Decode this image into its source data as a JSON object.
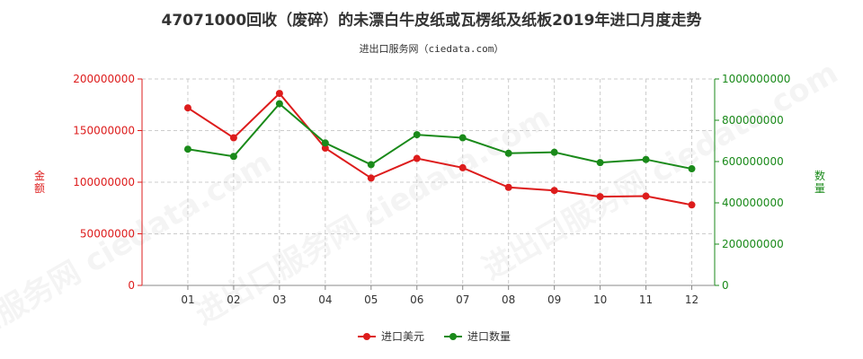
{
  "chart_data": {
    "type": "line",
    "title": "47071000回收（废碎）的未漂白牛皮纸或瓦楞纸及纸板2019年进口月度走势",
    "subtitle": "进出口服务网（ciedata.com）",
    "watermark": "进出口服务网 ciedata.com",
    "categories": [
      "01",
      "02",
      "03",
      "04",
      "05",
      "06",
      "07",
      "08",
      "09",
      "10",
      "11",
      "12"
    ],
    "y_left": {
      "label": "金额",
      "ylim": [
        0,
        200000000
      ],
      "ticks": [
        "0",
        "50000000",
        "100000000",
        "150000000",
        "200000000"
      ],
      "color": "#dd1c1c"
    },
    "y_right": {
      "label": "数量",
      "ylim": [
        0,
        1000000000
      ],
      "ticks": [
        "0",
        "200000000",
        "400000000",
        "600000000",
        "800000000",
        "1000000000"
      ],
      "color": "#1a8a1a"
    },
    "grid": true,
    "legend_position": "bottom",
    "series": [
      {
        "name": "进口美元",
        "axis": "left",
        "color": "#dd1c1c",
        "values": [
          172000000,
          143000000,
          186000000,
          133000000,
          104000000,
          123000000,
          114000000,
          95000000,
          92000000,
          86000000,
          86500000,
          78000000
        ]
      },
      {
        "name": "进口数量",
        "axis": "right",
        "color": "#1a8a1a",
        "values": [
          660000000,
          625000000,
          880000000,
          690000000,
          585000000,
          730000000,
          715000000,
          640000000,
          645000000,
          595000000,
          610000000,
          565000000
        ]
      }
    ]
  }
}
